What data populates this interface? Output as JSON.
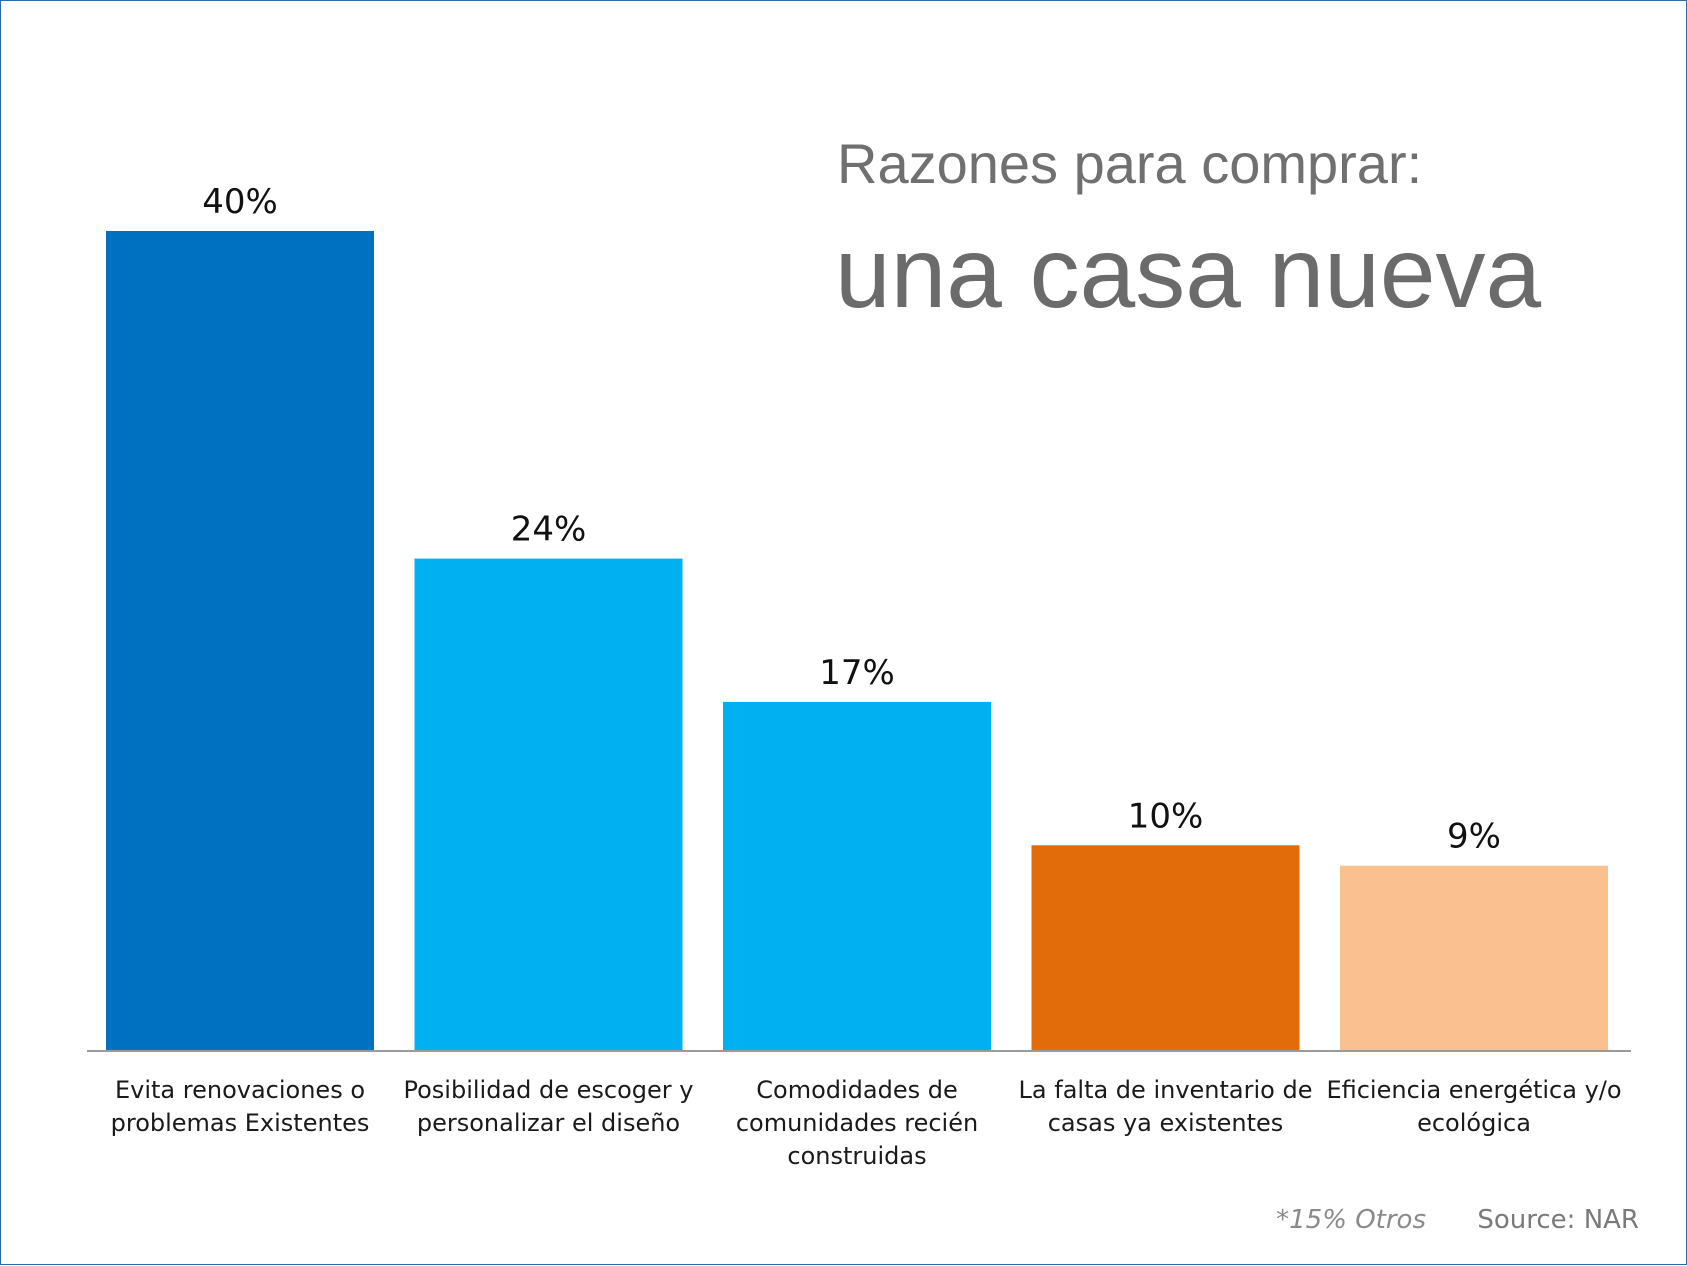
{
  "chart_data": {
    "type": "bar",
    "title": "una casa nueva",
    "subtitle": "Razones para comprar:",
    "categories": [
      [
        "Evita renovaciones o",
        "problemas Existentes"
      ],
      [
        "Posibilidad de escoger y",
        "personalizar el diseño"
      ],
      [
        "Comodidades de",
        "comunidades recién",
        "construidas"
      ],
      [
        "La falta de inventario de",
        "casas ya existentes"
      ],
      [
        "Eficiencia energética y/o",
        "ecológica"
      ]
    ],
    "values": [
      40,
      24,
      17,
      10,
      9
    ],
    "value_labels": [
      "40%",
      "24%",
      "17%",
      "10%",
      "9%"
    ],
    "colors": [
      "#0070C0",
      "#00B0F0",
      "#00B0F0",
      "#E36C0A",
      "#FAC090"
    ],
    "ylim": [
      0,
      40
    ],
    "grid": false,
    "legend": "none",
    "xlabel": "",
    "ylabel": ""
  },
  "footer": {
    "note": "*15% Otros",
    "source": "Source: NAR"
  }
}
